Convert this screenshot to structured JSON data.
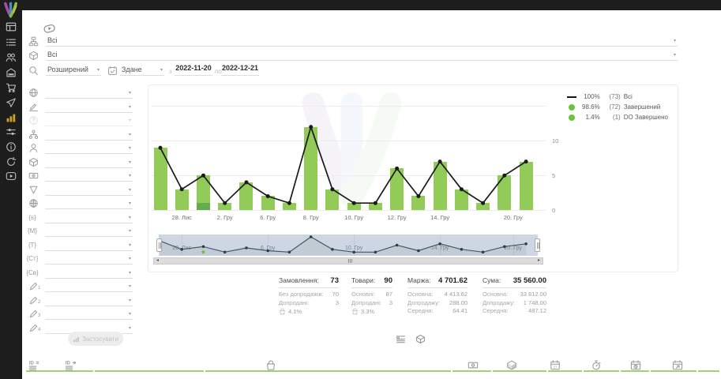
{
  "colors": {
    "accent_green": "#92cb57",
    "dark_green": "#63ad4f",
    "line_black": "#1a1a1a",
    "legend_green": "#6fc13e",
    "brush_bg": "#cdd6e2",
    "sidebar_bg": "#1d1d1d",
    "active_icon": "#c9a227",
    "table_border_green": "#a7d073"
  },
  "sidebar": {
    "items": [
      {
        "name": "dashboard",
        "icon": "dashboard"
      },
      {
        "name": "orders",
        "icon": "list"
      },
      {
        "name": "customers",
        "icon": "users"
      },
      {
        "name": "store",
        "icon": "store"
      },
      {
        "name": "cart",
        "icon": "cart"
      },
      {
        "name": "marketing",
        "icon": "send"
      },
      {
        "name": "analytics",
        "icon": "bars",
        "active": true
      },
      {
        "name": "automation",
        "icon": "sliders"
      },
      {
        "name": "info",
        "icon": "info"
      },
      {
        "name": "sync",
        "icon": "refresh"
      },
      {
        "name": "video",
        "icon": "video"
      }
    ]
  },
  "filters": {
    "group_value": "Всі",
    "product_value": "Всі",
    "search_mode_value": "Розширений",
    "date_type_value": "Здане",
    "from_label": "з",
    "date_from": "2022-11-20",
    "to_label": "по",
    "date_to": "2022-12-21",
    "apply_label": "Застосувати"
  },
  "side_filters": {
    "rows": [
      {
        "name": "country-filter",
        "icon": "globe"
      },
      {
        "name": "signature-filter",
        "icon": "penlines"
      },
      {
        "name": "help-filter",
        "icon": "help",
        "disabled": true
      },
      {
        "name": "structure-filter",
        "icon": "org"
      },
      {
        "name": "manager-filter",
        "icon": "person"
      },
      {
        "name": "product-filter",
        "icon": "cube"
      },
      {
        "name": "payment-filter",
        "icon": "banknote"
      },
      {
        "name": "funnel-filter",
        "icon": "funnel"
      },
      {
        "name": "website-filter",
        "icon": "web"
      },
      {
        "name": "var-s-filter",
        "icon": "brace",
        "text": "{s}"
      },
      {
        "name": "var-m-filter",
        "icon": "brace",
        "text": "{M}"
      },
      {
        "name": "var-t-filter",
        "icon": "brace",
        "text": "{T}"
      },
      {
        "name": "var-st-filter",
        "icon": "brace",
        "text": "{Ст}"
      },
      {
        "name": "var-sv-filter",
        "icon": "brace",
        "text": "{Св}"
      },
      {
        "name": "custom-1-filter",
        "icon": "pencil",
        "sub": "1"
      },
      {
        "name": "custom-2-filter",
        "icon": "pencil",
        "sub": "2"
      },
      {
        "name": "custom-3-filter",
        "icon": "pencil",
        "sub": "3"
      },
      {
        "name": "custom-4-filter",
        "icon": "pencil",
        "sub": "4"
      }
    ]
  },
  "chart_data": {
    "type": "bar",
    "title": "",
    "y_ticks": [
      0,
      5,
      10
    ],
    "gridlines": [
      0,
      5,
      10,
      15
    ],
    "ylim": [
      0,
      15
    ],
    "categories_note": "days 2022-11-20..2022-12-21, days without orders skipped",
    "series": [
      {
        "name": "Всі",
        "type": "line",
        "color": "#1a1a1a",
        "values": [
          9,
          3,
          5,
          1,
          4,
          2,
          1,
          12,
          3,
          1,
          1,
          6,
          2,
          7,
          3,
          1,
          5,
          7
        ]
      },
      {
        "name": "Завершений",
        "type": "bar",
        "color": "#92cb57",
        "values": [
          9,
          3,
          4,
          1,
          4,
          2,
          1,
          12,
          3,
          1,
          1,
          6,
          2,
          7,
          3,
          1,
          5,
          7
        ]
      },
      {
        "name": "DO Завершено",
        "type": "bar",
        "color": "#63ad4f",
        "values": [
          0,
          0,
          1,
          0,
          0,
          0,
          0,
          0,
          0,
          0,
          0,
          0,
          0,
          0,
          0,
          0,
          0,
          0
        ]
      }
    ],
    "x_ticks": [
      {
        "i": 1,
        "label": "28. Лис"
      },
      {
        "i": 3,
        "label": "2. Гру"
      },
      {
        "i": 5,
        "label": "6. Гру"
      },
      {
        "i": 7,
        "label": "8. Гру"
      },
      {
        "i": 9,
        "label": "10. Гру"
      },
      {
        "i": 11,
        "label": "12. Гру"
      },
      {
        "i": 13,
        "label": "14. Гру"
      },
      {
        "i": 16.4,
        "label": "20. Гру"
      }
    ],
    "legend": [
      {
        "marker": "line",
        "color": "#141414",
        "pct": "100%",
        "count": "(73)",
        "label": "Всі"
      },
      {
        "marker": "dot",
        "color": "#6fc13e",
        "pct": "98.6%",
        "count": "(72)",
        "label": "Завершений"
      },
      {
        "marker": "dot",
        "color": "#6fc13e",
        "pct": "1.4%",
        "count": "(1)",
        "label": "DO Завершено"
      }
    ],
    "brush_ticks": [
      {
        "i": 1,
        "label": "28. Лис"
      },
      {
        "i": 5,
        "label": "6. Гру"
      },
      {
        "i": 9,
        "label": "10. Гру"
      },
      {
        "i": 13,
        "label": "14. Гру"
      },
      {
        "i": 16.4,
        "label": "20. Гру"
      }
    ],
    "legend_position": "top-right",
    "grid": true
  },
  "stats": {
    "columns": [
      {
        "name": "orders",
        "title": "Замовлення:",
        "value": "73",
        "rows": [
          {
            "label": "Без допродажів:",
            "value": "70"
          },
          {
            "label": "Допродані:",
            "value": "3"
          }
        ],
        "percent": "4.1%"
      },
      {
        "name": "items",
        "title": "Товари:",
        "value": "90",
        "rows": [
          {
            "label": "Основні:",
            "value": "87"
          },
          {
            "label": "Допродані:",
            "value": "3"
          }
        ],
        "percent": "3.3%"
      },
      {
        "name": "margin",
        "title": "Маржа:",
        "value": "4 701.62",
        "rows": [
          {
            "label": "Основна:",
            "value": "4 413.62"
          },
          {
            "label": "Допродажу:",
            "value": "288.00"
          },
          {
            "label": "Середня:",
            "value": "64.41"
          }
        ]
      },
      {
        "name": "sum",
        "title": "Сума:",
        "value": "35 560.00",
        "rows": [
          {
            "label": "Основна:",
            "value": "33 812.00"
          },
          {
            "label": "Допродажу:",
            "value": "1 748.00"
          },
          {
            "label": "Середня:",
            "value": "487.12"
          }
        ]
      }
    ]
  },
  "view_toggles": [
    {
      "name": "table-view",
      "icon": "listview"
    },
    {
      "name": "products-view",
      "icon": "cube"
    }
  ],
  "bottom_bar": {
    "columns": [
      {
        "name": "order-id-column",
        "icon": "ideq"
      },
      {
        "name": "product-id-column",
        "icon": "ido"
      },
      {
        "name": "product-column",
        "icon": "bag"
      },
      {
        "name": "price-column",
        "icon": "banknote"
      },
      {
        "name": "items-column",
        "icon": "cubefill"
      },
      {
        "name": "date-created-column",
        "icon": "cal17"
      },
      {
        "name": "duration-column",
        "icon": "stopwatch"
      },
      {
        "name": "date-status-column",
        "icon": "calclock"
      },
      {
        "name": "date-shipped-column",
        "icon": "calarrow"
      }
    ]
  }
}
